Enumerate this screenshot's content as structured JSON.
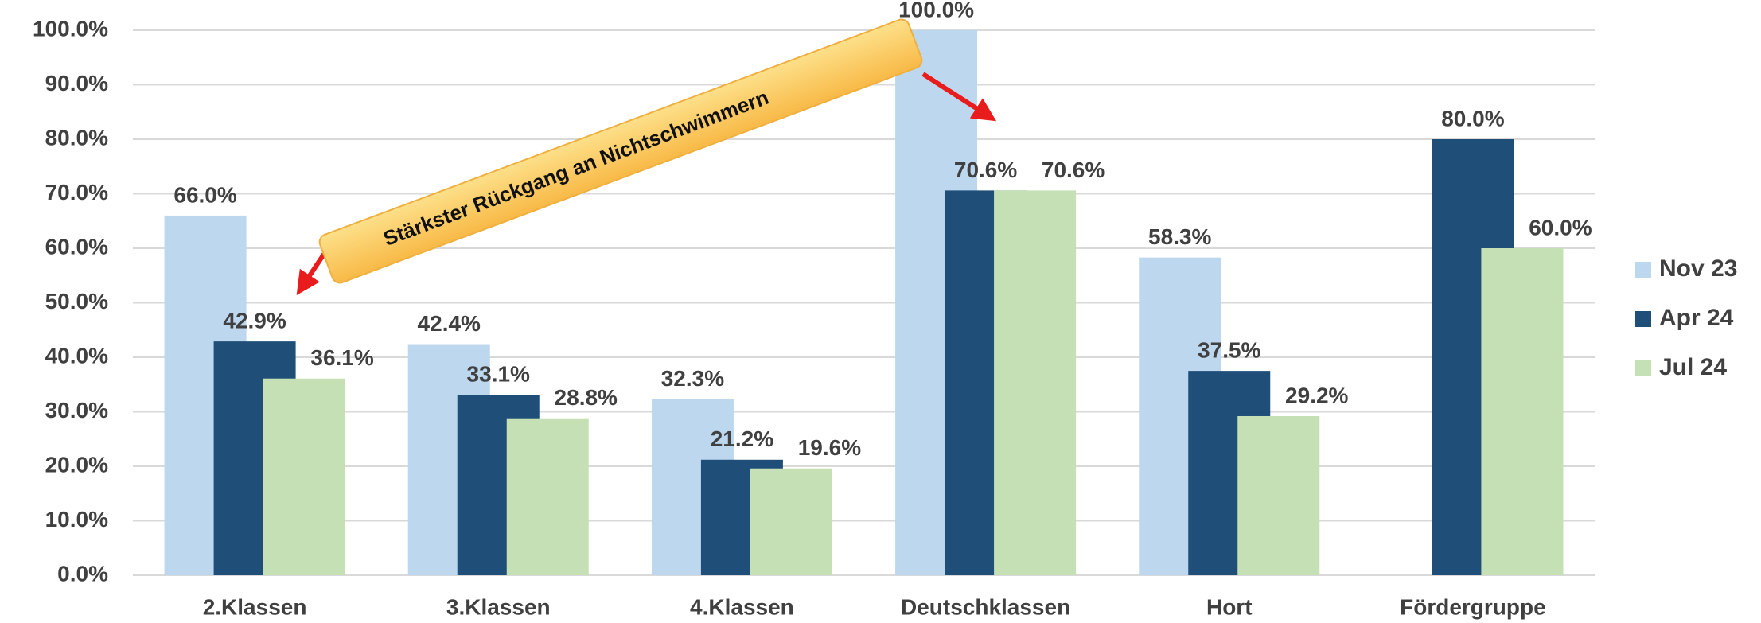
{
  "chart_data": {
    "type": "bar",
    "categories": [
      "2.Klassen",
      "3.Klassen",
      "4.Klassen",
      "Deutschklassen",
      "Hort",
      "Fördergruppe"
    ],
    "series": [
      {
        "name": "Nov 23",
        "color": "#bdd7ee",
        "values": [
          66.0,
          42.4,
          32.3,
          100.0,
          58.3,
          null
        ],
        "value_labels": [
          "66.0%",
          "42.4%",
          "32.3%",
          "100.0%",
          "58.3%",
          null
        ]
      },
      {
        "name": "Apr 24",
        "color": "#1f4e79",
        "values": [
          42.9,
          33.1,
          21.2,
          70.6,
          37.5,
          80.0
        ],
        "value_labels": [
          "42.9%",
          "33.1%",
          "21.2%",
          "70.6%",
          "37.5%",
          "80.0%"
        ]
      },
      {
        "name": "Jul 24",
        "color": "#c5e0b4",
        "values": [
          36.1,
          28.8,
          19.6,
          70.6,
          29.2,
          60.0
        ],
        "value_labels": [
          "36.1%",
          "28.8%",
          "19.6%",
          "70.6%",
          "29.2%",
          "60.0%"
        ]
      }
    ],
    "ylim": [
      0,
      100
    ],
    "yticks": [
      {
        "value": 0,
        "label": "0.0%"
      },
      {
        "value": 10,
        "label": "10.0%"
      },
      {
        "value": 20,
        "label": "20.0%"
      },
      {
        "value": 30,
        "label": "30.0%"
      },
      {
        "value": 40,
        "label": "40.0%"
      },
      {
        "value": 50,
        "label": "50.0%"
      },
      {
        "value": 60,
        "label": "60.0%"
      },
      {
        "value": 70,
        "label": "70.0%"
      },
      {
        "value": 80,
        "label": "80.0%"
      },
      {
        "value": 90,
        "label": "90.0%"
      },
      {
        "value": 100,
        "label": "100.0%"
      }
    ],
    "grid": true,
    "legend": "right",
    "annotation": "Stärkster Rückgang an Nichtschwimmern"
  }
}
